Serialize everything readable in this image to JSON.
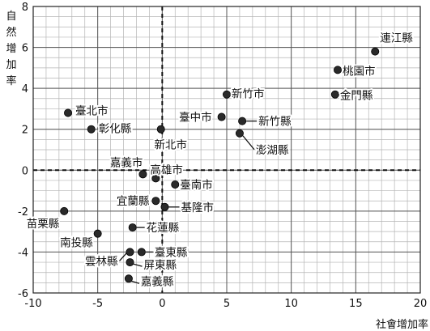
{
  "chart_data": {
    "type": "scatter",
    "title": "",
    "xlabel": "社會增加率",
    "ylabel": "自然增加率",
    "xlim": [
      -10,
      20
    ],
    "ylim": [
      -6,
      8
    ],
    "x_ticks": [
      -10,
      -5,
      0,
      5,
      10,
      15,
      20
    ],
    "y_ticks": [
      -6,
      -4,
      -2,
      0,
      2,
      4,
      6,
      8
    ],
    "x_tick_labels": [
      "-10",
      "-5",
      "0",
      "5",
      "10",
      "15",
      "20"
    ],
    "y_tick_labels": [
      "-6",
      "-4",
      "-2",
      "0",
      "2",
      "4",
      "6",
      "8"
    ],
    "grid": true,
    "grid_minor_step": 1,
    "zero_lines": "dashed",
    "points": [
      {
        "name": "連江縣",
        "x": 16.5,
        "y": 5.8
      },
      {
        "name": "桃園市",
        "x": 13.6,
        "y": 4.9
      },
      {
        "name": "金門縣",
        "x": 13.4,
        "y": 3.7
      },
      {
        "name": "新竹市",
        "x": 5.0,
        "y": 3.7
      },
      {
        "name": "臺北市",
        "x": -7.3,
        "y": 2.8
      },
      {
        "name": "彰化縣",
        "x": -5.5,
        "y": 2.0
      },
      {
        "name": "新北市",
        "x": -0.1,
        "y": 2.0
      },
      {
        "name": "臺中市",
        "x": 4.6,
        "y": 2.6
      },
      {
        "name": "新竹縣",
        "x": 6.2,
        "y": 2.4
      },
      {
        "name": "澎湖縣",
        "x": 6.0,
        "y": 1.8
      },
      {
        "name": "嘉義市",
        "x": -1.5,
        "y": -0.2
      },
      {
        "name": "高雄市",
        "x": -0.5,
        "y": -0.4
      },
      {
        "name": "臺南市",
        "x": 1.0,
        "y": -0.7
      },
      {
        "name": "宜蘭縣",
        "x": -0.5,
        "y": -1.5
      },
      {
        "name": "基隆市",
        "x": 0.2,
        "y": -1.8
      },
      {
        "name": "苗栗縣",
        "x": -7.6,
        "y": -2.0
      },
      {
        "name": "花蓮縣",
        "x": -2.3,
        "y": -2.8
      },
      {
        "name": "南投縣",
        "x": -5.0,
        "y": -3.1
      },
      {
        "name": "雲林縣",
        "x": -2.5,
        "y": -4.0
      },
      {
        "name": "臺東縣",
        "x": -1.6,
        "y": -4.0
      },
      {
        "name": "屏東縣",
        "x": -2.5,
        "y": -4.5
      },
      {
        "name": "嘉義縣",
        "x": -2.6,
        "y": -5.3
      }
    ]
  }
}
